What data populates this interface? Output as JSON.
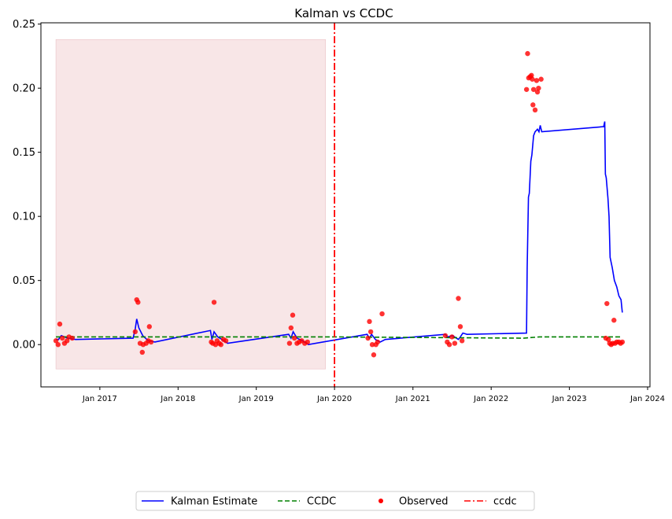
{
  "chart_data": {
    "type": "line",
    "title": "Kalman vs CCDC",
    "xlabel": "",
    "ylabel": "",
    "xlim": [
      "2016-04-01",
      "2024-01-12"
    ],
    "ylim": [
      -0.033,
      0.251
    ],
    "grid": false,
    "legend_position": "bottom-center",
    "x_ticks": [
      {
        "date": "2017-01-01",
        "label": "Jan 2017"
      },
      {
        "date": "2018-01-01",
        "label": "Jan 2018"
      },
      {
        "date": "2019-01-01",
        "label": "Jan 2019"
      },
      {
        "date": "2020-01-01",
        "label": "Jan 2020"
      },
      {
        "date": "2021-01-01",
        "label": "Jan 2021"
      },
      {
        "date": "2022-01-01",
        "label": "Jan 2022"
      },
      {
        "date": "2023-01-01",
        "label": "Jan 2023"
      },
      {
        "date": "2024-01-01",
        "label": "Jan 2024"
      }
    ],
    "y_ticks": [
      {
        "value": 0.0,
        "label": "0.00"
      },
      {
        "value": 0.05,
        "label": "0.05"
      },
      {
        "value": 0.1,
        "label": "0.10"
      },
      {
        "value": 0.15,
        "label": "0.15"
      },
      {
        "value": 0.2,
        "label": "0.20"
      },
      {
        "value": 0.25,
        "label": "0.25"
      }
    ],
    "shaded_region": {
      "x": [
        "2016-06-10",
        "2019-11-20"
      ],
      "y": [
        -0.019,
        0.238
      ],
      "color": "#f3d5d7"
    },
    "vertical_line": {
      "x": "2020-01-01",
      "name": "ccdc",
      "color": "#ff0000"
    },
    "series": [
      {
        "name": "Kalman Estimate",
        "style": "solid",
        "color": "#0000ff",
        "points": [
          [
            "2016-06-10",
            0.004
          ],
          [
            "2016-06-22",
            0.004
          ],
          [
            "2016-07-05",
            0.007
          ],
          [
            "2016-07-20",
            0.006
          ],
          [
            "2016-08-05",
            0.005
          ],
          [
            "2016-09-10",
            0.004
          ],
          [
            "2017-06-05",
            0.005
          ],
          [
            "2017-06-15",
            0.012
          ],
          [
            "2017-06-22",
            0.02
          ],
          [
            "2017-07-02",
            0.013
          ],
          [
            "2017-07-20",
            0.007
          ],
          [
            "2017-08-15",
            0.003
          ],
          [
            "2017-09-15",
            0.002
          ],
          [
            "2018-06-01",
            0.011
          ],
          [
            "2018-06-08",
            0.004
          ],
          [
            "2018-06-18",
            0.01
          ],
          [
            "2018-07-05",
            0.006
          ],
          [
            "2018-07-25",
            0.004
          ],
          [
            "2018-08-20",
            0.001
          ],
          [
            "2019-06-01",
            0.008
          ],
          [
            "2019-06-12",
            0.005
          ],
          [
            "2019-06-22",
            0.01
          ],
          [
            "2019-07-10",
            0.005
          ],
          [
            "2019-08-05",
            0.003
          ],
          [
            "2019-09-01",
            0.0
          ],
          [
            "2020-06-01",
            0.008
          ],
          [
            "2020-06-12",
            0.005
          ],
          [
            "2020-06-22",
            0.008
          ],
          [
            "2020-07-10",
            0.004
          ],
          [
            "2020-08-01",
            0.002
          ],
          [
            "2020-08-25",
            0.004
          ],
          [
            "2021-06-01",
            0.008
          ],
          [
            "2021-06-12",
            0.006
          ],
          [
            "2021-07-05",
            0.007
          ],
          [
            "2021-08-01",
            0.004
          ],
          [
            "2021-08-10",
            0.006
          ],
          [
            "2021-08-22",
            0.009
          ],
          [
            "2021-09-10",
            0.008
          ],
          [
            "2022-06-15",
            0.009
          ],
          [
            "2022-06-18",
            0.06
          ],
          [
            "2022-06-24",
            0.115
          ],
          [
            "2022-06-28",
            0.118
          ],
          [
            "2022-07-05",
            0.143
          ],
          [
            "2022-07-10",
            0.148
          ],
          [
            "2022-07-18",
            0.163
          ],
          [
            "2022-07-25",
            0.166
          ],
          [
            "2022-08-05",
            0.168
          ],
          [
            "2022-08-12",
            0.166
          ],
          [
            "2022-08-18",
            0.171
          ],
          [
            "2022-08-25",
            0.166
          ],
          [
            "2023-06-10",
            0.17
          ],
          [
            "2023-06-15",
            0.174
          ],
          [
            "2023-06-18",
            0.133
          ],
          [
            "2023-06-22",
            0.13
          ],
          [
            "2023-06-30",
            0.114
          ],
          [
            "2023-07-05",
            0.1
          ],
          [
            "2023-07-10",
            0.068
          ],
          [
            "2023-07-20",
            0.06
          ],
          [
            "2023-07-30",
            0.05
          ],
          [
            "2023-08-10",
            0.045
          ],
          [
            "2023-08-20",
            0.038
          ],
          [
            "2023-08-30",
            0.035
          ],
          [
            "2023-09-05",
            0.025
          ]
        ]
      },
      {
        "name": "CCDC",
        "style": "dashed",
        "color": "#008000",
        "points": [
          [
            "2016-06-10",
            0.006
          ],
          [
            "2018-01-01",
            0.006
          ],
          [
            "2020-01-01",
            0.006
          ],
          [
            "2022-06-01",
            0.005
          ],
          [
            "2022-08-15",
            0.006
          ],
          [
            "2023-09-05",
            0.006
          ]
        ]
      },
      {
        "name": "Observed",
        "style": "markers",
        "color": "#ff0000",
        "points": [
          [
            "2016-06-10",
            0.003
          ],
          [
            "2016-06-20",
            0.0
          ],
          [
            "2016-06-28",
            0.016
          ],
          [
            "2016-07-10",
            0.005
          ],
          [
            "2016-07-20",
            0.001
          ],
          [
            "2016-08-01",
            0.003
          ],
          [
            "2016-08-10",
            0.006
          ],
          [
            "2016-08-25",
            0.005
          ],
          [
            "2017-06-15",
            0.01
          ],
          [
            "2017-06-22",
            0.035
          ],
          [
            "2017-06-28",
            0.033
          ],
          [
            "2017-07-08",
            0.001
          ],
          [
            "2017-07-18",
            -0.006
          ],
          [
            "2017-07-22",
            0.0
          ],
          [
            "2017-08-05",
            0.001
          ],
          [
            "2017-08-15",
            0.003
          ],
          [
            "2017-08-20",
            0.014
          ],
          [
            "2017-08-28",
            0.002
          ],
          [
            "2018-06-05",
            0.002
          ],
          [
            "2018-06-12",
            0.001
          ],
          [
            "2018-06-18",
            0.033
          ],
          [
            "2018-06-25",
            0.0
          ],
          [
            "2018-07-02",
            0.003
          ],
          [
            "2018-07-12",
            0.001
          ],
          [
            "2018-07-20",
            0.0
          ],
          [
            "2018-08-01",
            0.004
          ],
          [
            "2018-08-12",
            0.003
          ],
          [
            "2019-06-05",
            0.001
          ],
          [
            "2019-06-12",
            0.013
          ],
          [
            "2019-06-20",
            0.023
          ],
          [
            "2019-06-28",
            0.005
          ],
          [
            "2019-07-10",
            0.001
          ],
          [
            "2019-07-20",
            0.002
          ],
          [
            "2019-08-01",
            0.003
          ],
          [
            "2019-08-15",
            0.001
          ],
          [
            "2019-08-28",
            0.002
          ],
          [
            "2020-06-05",
            0.005
          ],
          [
            "2020-06-12",
            0.018
          ],
          [
            "2020-06-18",
            0.01
          ],
          [
            "2020-06-25",
            0.0
          ],
          [
            "2020-07-02",
            -0.008
          ],
          [
            "2020-07-12",
            0.0
          ],
          [
            "2020-07-20",
            0.002
          ],
          [
            "2020-08-10",
            0.024
          ],
          [
            "2021-06-01",
            0.007
          ],
          [
            "2021-06-10",
            0.002
          ],
          [
            "2021-06-20",
            0.0
          ],
          [
            "2021-07-02",
            0.006
          ],
          [
            "2021-07-15",
            0.001
          ],
          [
            "2021-08-01",
            0.036
          ],
          [
            "2021-08-10",
            0.014
          ],
          [
            "2021-08-18",
            0.003
          ],
          [
            "2022-06-15",
            0.199
          ],
          [
            "2022-06-20",
            0.227
          ],
          [
            "2022-06-25",
            0.208
          ],
          [
            "2022-07-02",
            0.209
          ],
          [
            "2022-07-08",
            0.21
          ],
          [
            "2022-07-12",
            0.207
          ],
          [
            "2022-07-18",
            0.199
          ],
          [
            "2022-07-15",
            0.187
          ],
          [
            "2022-07-25",
            0.183
          ],
          [
            "2022-08-01",
            0.206
          ],
          [
            "2022-08-05",
            0.197
          ],
          [
            "2022-08-10",
            0.2
          ],
          [
            "2022-08-22",
            0.207
          ],
          [
            "2023-06-20",
            0.005
          ],
          [
            "2023-06-25",
            0.032
          ],
          [
            "2023-07-02",
            0.004
          ],
          [
            "2023-07-08",
            0.001
          ],
          [
            "2023-07-15",
            0.0
          ],
          [
            "2023-07-22",
            0.001
          ],
          [
            "2023-07-28",
            0.019
          ],
          [
            "2023-08-02",
            0.001
          ],
          [
            "2023-08-10",
            0.002
          ],
          [
            "2023-08-20",
            0.002
          ],
          [
            "2023-08-28",
            0.001
          ],
          [
            "2023-09-05",
            0.002
          ]
        ]
      }
    ]
  }
}
